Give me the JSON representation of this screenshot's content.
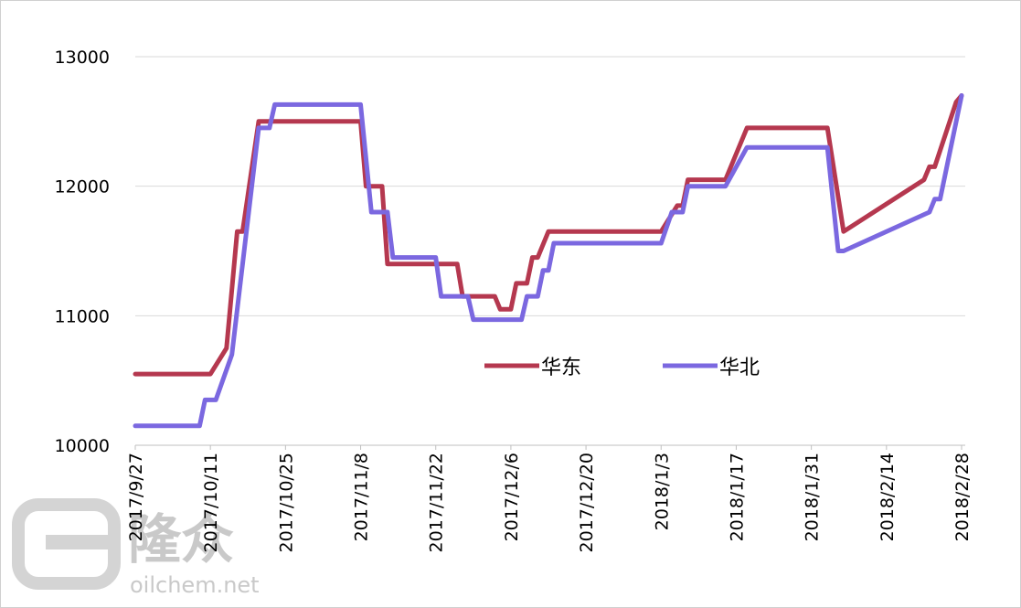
{
  "chart_data": {
    "type": "line",
    "title": "",
    "xlabel": "",
    "ylabel": "",
    "ylim": [
      10000,
      13000
    ],
    "y_ticks": [
      10000,
      11000,
      12000,
      13000
    ],
    "x_tick_labels": [
      "2017/9/27",
      "2017/10/11",
      "2017/10/25",
      "2017/11/8",
      "2017/11/22",
      "2017/12/6",
      "2017/12/20",
      "2018/1/3",
      "2018/1/17",
      "2018/1/31",
      "2018/2/14",
      "2018/2/28"
    ],
    "grid": "horizontal",
    "legend_position": "center-right",
    "series": [
      {
        "name": "华东",
        "color": "#b5384f",
        "points": [
          [
            "2017-09-27",
            10550
          ],
          [
            "2017-10-11",
            10550
          ],
          [
            "2017-10-14",
            10750
          ],
          [
            "2017-10-16",
            11650
          ],
          [
            "2017-10-17",
            11650
          ],
          [
            "2017-10-20",
            12500
          ],
          [
            "2017-11-08",
            12500
          ],
          [
            "2017-11-09",
            12000
          ],
          [
            "2017-11-12",
            12000
          ],
          [
            "2017-11-13",
            11400
          ],
          [
            "2017-11-20",
            11400
          ],
          [
            "2017-11-26",
            11400
          ],
          [
            "2017-11-27",
            11150
          ],
          [
            "2017-12-03",
            11150
          ],
          [
            "2017-12-04",
            11050
          ],
          [
            "2017-12-06",
            11050
          ],
          [
            "2017-12-07",
            11250
          ],
          [
            "2017-12-09",
            11250
          ],
          [
            "2017-12-10",
            11450
          ],
          [
            "2017-12-11",
            11450
          ],
          [
            "2017-12-13",
            11650
          ],
          [
            "2018-01-03",
            11650
          ],
          [
            "2018-01-06",
            11850
          ],
          [
            "2018-01-07",
            11850
          ],
          [
            "2018-01-08",
            12050
          ],
          [
            "2018-01-15",
            12050
          ],
          [
            "2018-01-19",
            12450
          ],
          [
            "2018-02-03",
            12450
          ],
          [
            "2018-02-06",
            11650
          ],
          [
            "2018-02-21",
            12050
          ],
          [
            "2018-02-22",
            12150
          ],
          [
            "2018-02-23",
            12150
          ],
          [
            "2018-02-27",
            12650
          ],
          [
            "2018-02-28",
            12700
          ]
        ]
      },
      {
        "name": "华北",
        "color": "#7b68e0",
        "points": [
          [
            "2017-09-27",
            10150
          ],
          [
            "2017-10-09",
            10150
          ],
          [
            "2017-10-10",
            10350
          ],
          [
            "2017-10-12",
            10350
          ],
          [
            "2017-10-15",
            10700
          ],
          [
            "2017-10-20",
            12450
          ],
          [
            "2017-10-22",
            12450
          ],
          [
            "2017-10-23",
            12630
          ],
          [
            "2017-11-08",
            12630
          ],
          [
            "2017-11-10",
            11800
          ],
          [
            "2017-11-13",
            11800
          ],
          [
            "2017-11-14",
            11450
          ],
          [
            "2017-11-22",
            11450
          ],
          [
            "2017-11-23",
            11150
          ],
          [
            "2017-11-28",
            11150
          ],
          [
            "2017-11-29",
            10970
          ],
          [
            "2017-12-08",
            10970
          ],
          [
            "2017-12-09",
            11150
          ],
          [
            "2017-12-11",
            11150
          ],
          [
            "2017-12-12",
            11350
          ],
          [
            "2017-12-13",
            11350
          ],
          [
            "2017-12-14",
            11560
          ],
          [
            "2018-01-03",
            11560
          ],
          [
            "2018-01-05",
            11800
          ],
          [
            "2018-01-07",
            11800
          ],
          [
            "2018-01-08",
            12000
          ],
          [
            "2018-01-15",
            12000
          ],
          [
            "2018-01-19",
            12300
          ],
          [
            "2018-02-03",
            12300
          ],
          [
            "2018-02-05",
            11500
          ],
          [
            "2018-02-06",
            11500
          ],
          [
            "2018-02-22",
            11800
          ],
          [
            "2018-02-23",
            11900
          ],
          [
            "2018-02-24",
            11900
          ],
          [
            "2018-02-28",
            12700
          ]
        ]
      }
    ]
  },
  "watermark": {
    "brand_text": "隆众",
    "site_text": "oilchem.net"
  }
}
